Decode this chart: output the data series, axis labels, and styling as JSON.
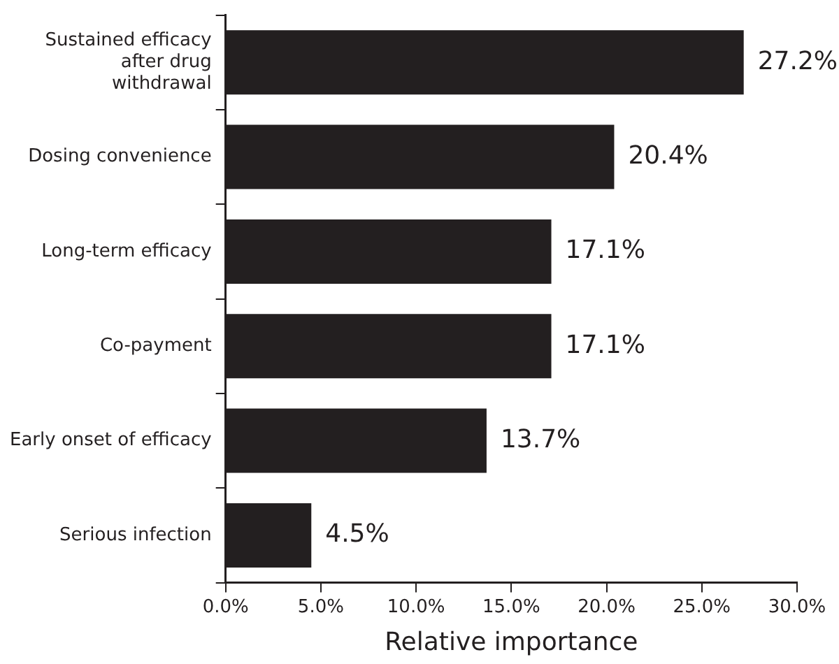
{
  "chart_data": {
    "type": "bar",
    "orientation": "horizontal",
    "xlabel": "Relative importance",
    "categories": [
      "Sustained efficacy after drug withdrawal",
      "Dosing convenience",
      "Long-term efficacy",
      "Co-payment",
      "Early onset of efficacy",
      "Serious infection"
    ],
    "values": [
      27.2,
      20.4,
      17.1,
      17.1,
      13.7,
      4.5
    ],
    "value_labels": [
      "27.2%",
      "20.4%",
      "17.1%",
      "17.1%",
      "13.7%",
      "4.5%"
    ],
    "color": "#231f20",
    "xlim": [
      0,
      30
    ],
    "xticks": [
      {
        "value": 0,
        "label": "0.0%"
      },
      {
        "value": 5,
        "label": "5.0%"
      },
      {
        "value": 10,
        "label": "10.0%"
      },
      {
        "value": 15,
        "label": "15.0%"
      },
      {
        "value": 20,
        "label": "20.0%"
      },
      {
        "value": 25,
        "label": "25.0%"
      },
      {
        "value": 30,
        "label": "30.0%"
      }
    ],
    "grid": false,
    "legend": false
  }
}
